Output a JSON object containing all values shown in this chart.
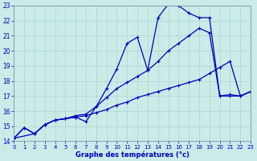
{
  "title": "Graphe des températures (°c)",
  "background_color": "#cceae7",
  "line_color": "#0000bb",
  "xlim": [
    0,
    23
  ],
  "ylim": [
    14,
    23
  ],
  "xticks": [
    0,
    1,
    2,
    3,
    4,
    5,
    6,
    7,
    8,
    9,
    10,
    11,
    12,
    13,
    14,
    15,
    16,
    17,
    18,
    19,
    20,
    21,
    22,
    23
  ],
  "yticks": [
    14,
    15,
    16,
    17,
    18,
    19,
    20,
    21,
    22,
    23
  ],
  "line1_x": [
    0,
    1,
    2,
    3,
    4,
    5,
    6,
    7,
    8,
    9,
    10,
    11,
    12,
    13,
    14,
    15,
    16,
    17,
    18,
    19,
    20,
    21,
    22,
    23
  ],
  "line1_y": [
    14.2,
    14.9,
    14.5,
    15.1,
    15.4,
    15.5,
    15.6,
    15.7,
    15.9,
    16.1,
    16.4,
    16.6,
    16.9,
    17.1,
    17.3,
    17.5,
    17.7,
    17.9,
    18.1,
    18.5,
    18.9,
    19.3,
    17.0,
    17.3
  ],
  "line2_x": [
    0,
    1,
    2,
    3,
    4,
    5,
    6,
    7,
    8,
    9,
    10,
    11,
    12,
    13,
    14,
    15,
    16,
    17,
    18,
    19,
    20,
    21,
    22,
    23
  ],
  "line2_y": [
    14.2,
    14.9,
    14.5,
    15.1,
    15.4,
    15.5,
    15.7,
    15.8,
    16.3,
    16.9,
    17.5,
    17.9,
    18.3,
    18.7,
    19.3,
    20.0,
    20.5,
    21.0,
    21.5,
    21.2,
    17.0,
    17.0,
    17.0,
    17.3
  ],
  "line3_x": [
    0,
    2,
    3,
    4,
    5,
    6,
    7,
    8,
    9,
    10,
    11,
    12,
    13,
    14,
    15,
    16,
    17,
    18,
    19,
    20,
    21,
    22,
    23
  ],
  "line3_y": [
    14.2,
    14.5,
    15.1,
    15.4,
    15.5,
    15.6,
    15.3,
    16.3,
    17.5,
    18.8,
    20.5,
    20.9,
    18.7,
    22.2,
    23.1,
    23.0,
    22.5,
    22.2,
    22.2,
    17.0,
    17.1,
    17.0,
    17.3
  ]
}
